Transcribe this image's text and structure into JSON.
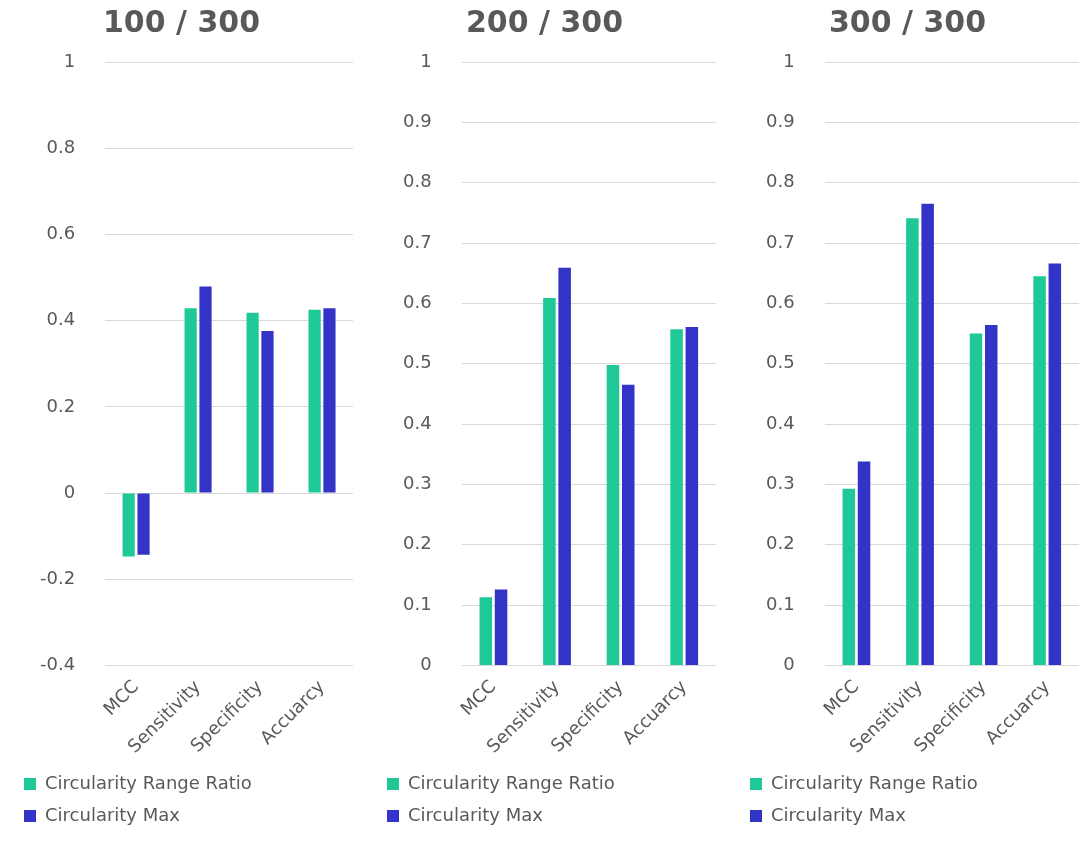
{
  "chart_data": [
    {
      "type": "bar",
      "title": "100 / 300",
      "categories": [
        "MCC",
        "Sensitivity",
        "Specificity",
        "Accuarcy"
      ],
      "series": [
        {
          "name": "Circularity Range Ratio",
          "color": "#1ec997",
          "values": [
            -0.147,
            0.429,
            0.418,
            0.425
          ]
        },
        {
          "name": "Circularity Max",
          "color": "#3333c8",
          "values": [
            -0.143,
            0.479,
            0.376,
            0.429
          ]
        }
      ],
      "ylim": [
        -0.4,
        1
      ],
      "yticks": [
        -0.4,
        -0.2,
        0,
        0.2,
        0.4,
        0.6,
        0.8,
        1
      ],
      "grid": "y",
      "legend": "bottom"
    },
    {
      "type": "bar",
      "title": "200 / 300",
      "categories": [
        "MCC",
        "Sensitivity",
        "Specificity",
        "Accuarcy"
      ],
      "series": [
        {
          "name": "Circularity Range Ratio",
          "color": "#1ec997",
          "values": [
            0.113,
            0.609,
            0.498,
            0.557
          ]
        },
        {
          "name": "Circularity Max",
          "color": "#3333c8",
          "values": [
            0.126,
            0.659,
            0.465,
            0.561
          ]
        }
      ],
      "ylim": [
        0,
        1
      ],
      "yticks": [
        0,
        0.1,
        0.2,
        0.3,
        0.4,
        0.5,
        0.6,
        0.7,
        0.8,
        0.9,
        1
      ],
      "grid": "y",
      "legend": "bottom"
    },
    {
      "type": "bar",
      "title": "300 / 300",
      "categories": [
        "MCC",
        "Sensitivity",
        "Specificity",
        "Accuarcy"
      ],
      "series": [
        {
          "name": "Circularity Range Ratio",
          "color": "#1ec997",
          "values": [
            0.293,
            0.741,
            0.55,
            0.645
          ]
        },
        {
          "name": "Circularity Max",
          "color": "#3333c8",
          "values": [
            0.338,
            0.765,
            0.564,
            0.666
          ]
        }
      ],
      "ylim": [
        0,
        1
      ],
      "yticks": [
        0,
        0.1,
        0.2,
        0.3,
        0.4,
        0.5,
        0.6,
        0.7,
        0.8,
        0.9,
        1
      ],
      "grid": "y",
      "legend": "bottom"
    }
  ]
}
